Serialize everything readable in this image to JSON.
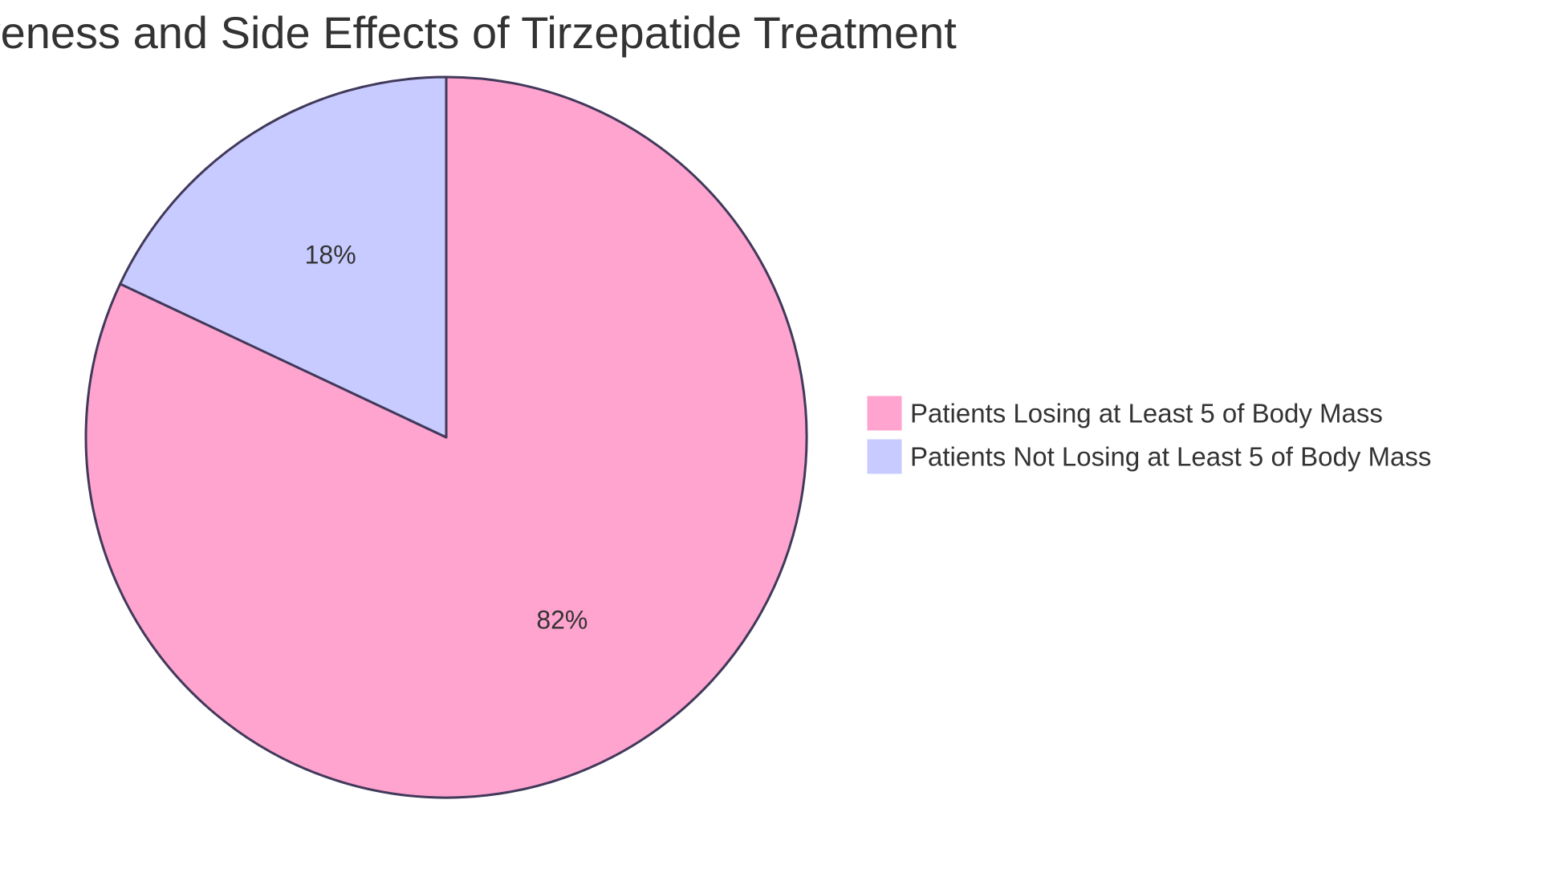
{
  "chart_data": {
    "type": "pie",
    "title": "Effectiveness and Side Effects of Tirzepatide Treatment",
    "slices": [
      {
        "name": "Patients Losing at Least 5 of Body Mass",
        "value": 82,
        "label": "82%",
        "color": "#FFA3CF"
      },
      {
        "name": "Patients Not Losing at Least 5 of Body Mass",
        "value": 18,
        "label": "18%",
        "color": "#C8CBFF"
      }
    ],
    "start_angle": "12 o'clock",
    "direction": "clockwise",
    "stroke_color": "#41395A",
    "legend_position": "right"
  }
}
